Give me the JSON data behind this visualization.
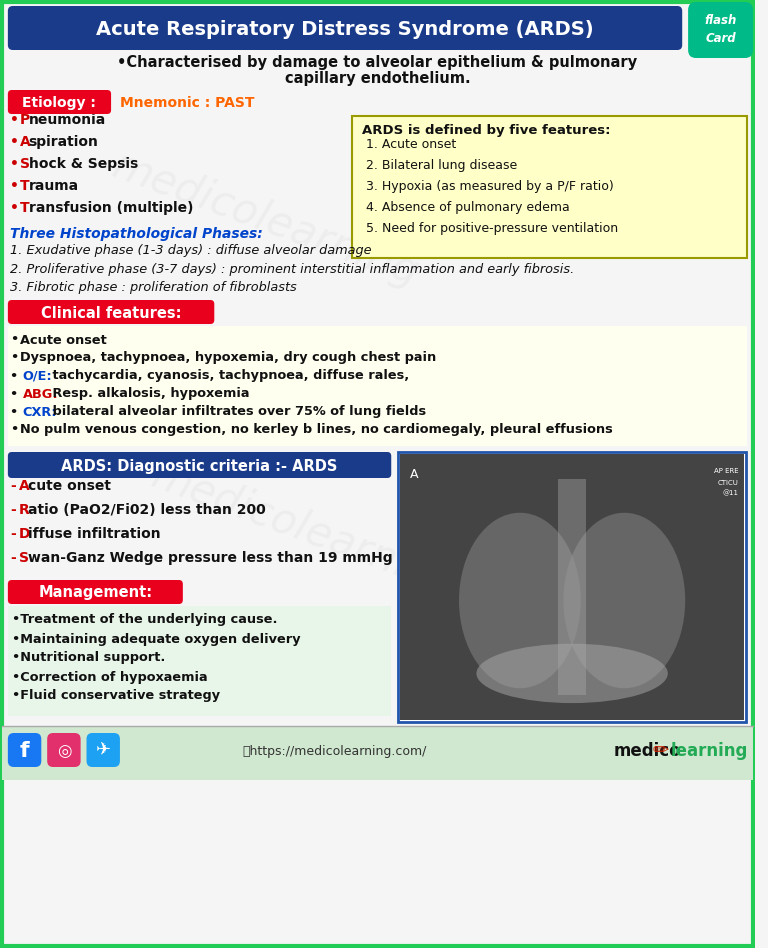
{
  "title": "Acute Respiratory Distress Syndrome (ARDS)",
  "subtitle_line1": "•Characterised by damage to alveolar epithelium & pulmonary",
  "subtitle_line2": "capillary endothelium.",
  "bg_color": "#f5f5f5",
  "border_color": "#22cc55",
  "title_bg": "#1a3a8a",
  "title_color": "#ffffff",
  "etiology_label": "Etiology :",
  "etiology_label_bg": "#e8001c",
  "etiology_label_color": "#ffffff",
  "mnemonic": "Mnemonic : PAST",
  "mnemonic_color": "#ff6600",
  "etiology_items": [
    "Pneumonia",
    "Aspiration",
    "Shock & Sepsis",
    "Trauma",
    "Transfusion (multiple)"
  ],
  "etiology_bold_letters": [
    "P",
    "A",
    "S",
    "T",
    "T"
  ],
  "five_features_title": "ARDS is defined by five features:",
  "five_features": [
    "1. Acute onset",
    "2. Bilateral lung disease",
    "3. Hypoxia (as measured by a P/F ratio)",
    "4. Absence of pulmonary edema",
    "5. Need for positive-pressure ventilation"
  ],
  "five_features_bg": "#ffffc8",
  "histo_title": "Three Histopathological Phases:",
  "histo_title_color": "#0044cc",
  "histo_items": [
    "1. Exudative phase (1-3 days) : diffuse alveolar damage",
    "2. Proliferative phase (3-7 days) : prominent interstitial inflammation and early fibrosis.",
    "3. Fibrotic phase : proliferation of fibroblasts"
  ],
  "clinical_label": "Clinical features:",
  "clinical_label_bg": "#e8001c",
  "clinical_label_color": "#ffffff",
  "clinical_bg": "#fffff0",
  "clinical_items": [
    [
      "•",
      "",
      "Acute onset"
    ],
    [
      "•",
      "",
      "Dyspnoea, tachypnoea, hypoxemia, dry cough chest pain"
    ],
    [
      "• ",
      "O/E:",
      "tachycardia, cyanosis, tachypnoea, diffuse rales,"
    ],
    [
      "• ",
      "ABG:",
      "Resp. alkalosis, hypoxemia"
    ],
    [
      "• ",
      "CXR:",
      "bilateral alveolar infiltrates over 75% of lung fields"
    ],
    [
      "•",
      "",
      "No pulm venous congestion, no kerley b lines, no cardiomegaly, pleural effusions"
    ]
  ],
  "oe_color": "#0044cc",
  "abg_color": "#cc0000",
  "cxr_color": "#0044cc",
  "diagnostic_label": "ARDS: Diagnostic criteria :- ARDS",
  "diagnostic_label_bg": "#1a3a8a",
  "diagnostic_label_color": "#ffffff",
  "diagnostic_items": [
    "Acute onset",
    "Ratio (PaO2/Fi02) less than 200",
    "Diffuse infiltration",
    "Swan-Ganz Wedge pressure less than 19 mmHg"
  ],
  "diagnostic_bold_letters": [
    "A",
    "R",
    "D",
    "S"
  ],
  "management_label": "Management:",
  "management_label_bg": "#e8001c",
  "management_label_color": "#ffffff",
  "management_bg": "#e8f5e9",
  "management_items": [
    "•Treatment of the underlying cause.",
    "•Maintaining adequate oxygen delivery",
    "•Nutritional support.",
    "•Correction of hypoxaemia",
    "•Fluid conservative strategy"
  ],
  "footer_bg": "#d0e8d0",
  "footer_url": "ⓘhttps://medicolearning.com/",
  "footer_brand1": "medico",
  "footer_brand2": "learning",
  "footer_brand_color1": "#111111",
  "footer_brand_color2": "#22aa55",
  "watermark": "medicolearning",
  "flash_card_color": "#00bb88",
  "xray_border": "#2255aa"
}
